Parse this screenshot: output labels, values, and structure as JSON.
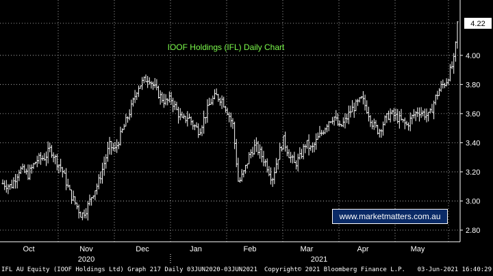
{
  "chart_data": {
    "type": "ohlc",
    "title": "IOOF Holdings (IFL) Daily Chart",
    "ylim": [
      2.72,
      4.38
    ],
    "y_ticks": [
      2.8,
      3.0,
      3.2,
      3.4,
      3.6,
      3.8,
      4.0,
      4.22
    ],
    "y_tick_labels": [
      "2.80",
      "3.00",
      "3.20",
      "3.40",
      "3.60",
      "3.80",
      "4.00"
    ],
    "last_value": 4.22,
    "last_value_label": "4.22",
    "x_months": [
      "Oct",
      "Nov",
      "Dec",
      "Jan",
      "Feb",
      "Mar",
      "Apr",
      "May"
    ],
    "x_years": [
      "2020",
      "2021"
    ],
    "grid": true,
    "price_path": [
      [
        0,
        3.12
      ],
      [
        3,
        3.1
      ],
      [
        6,
        3.22
      ],
      [
        9,
        3.18
      ],
      [
        12,
        3.28
      ],
      [
        15,
        3.3
      ],
      [
        17,
        3.36
      ],
      [
        19,
        3.28
      ],
      [
        21,
        3.22
      ],
      [
        24,
        3.05
      ],
      [
        26,
        2.98
      ],
      [
        28,
        2.9
      ],
      [
        30,
        2.95
      ],
      [
        32,
        3.05
      ],
      [
        34,
        3.12
      ],
      [
        36,
        3.25
      ],
      [
        38,
        3.38
      ],
      [
        40,
        3.35
      ],
      [
        42,
        3.45
      ],
      [
        44,
        3.55
      ],
      [
        46,
        3.65
      ],
      [
        48,
        3.78
      ],
      [
        50,
        3.82
      ],
      [
        52,
        3.85
      ],
      [
        54,
        3.78
      ],
      [
        56,
        3.72
      ],
      [
        58,
        3.68
      ],
      [
        60,
        3.7
      ],
      [
        62,
        3.62
      ],
      [
        64,
        3.55
      ],
      [
        66,
        3.58
      ],
      [
        68,
        3.52
      ],
      [
        70,
        3.48
      ],
      [
        72,
        3.58
      ],
      [
        74,
        3.68
      ],
      [
        76,
        3.72
      ],
      [
        78,
        3.7
      ],
      [
        80,
        3.62
      ],
      [
        82,
        3.52
      ],
      [
        84,
        3.12
      ],
      [
        86,
        3.2
      ],
      [
        88,
        3.32
      ],
      [
        90,
        3.38
      ],
      [
        92,
        3.32
      ],
      [
        94,
        3.25
      ],
      [
        96,
        3.15
      ],
      [
        98,
        3.3
      ],
      [
        100,
        3.42
      ],
      [
        102,
        3.32
      ],
      [
        104,
        3.25
      ],
      [
        106,
        3.3
      ],
      [
        108,
        3.4
      ],
      [
        110,
        3.35
      ],
      [
        112,
        3.42
      ],
      [
        114,
        3.48
      ],
      [
        116,
        3.55
      ],
      [
        118,
        3.58
      ],
      [
        120,
        3.5
      ],
      [
        122,
        3.55
      ],
      [
        124,
        3.62
      ],
      [
        126,
        3.66
      ],
      [
        128,
        3.7
      ],
      [
        130,
        3.62
      ],
      [
        132,
        3.52
      ],
      [
        134,
        3.48
      ],
      [
        136,
        3.55
      ],
      [
        138,
        3.6
      ],
      [
        140,
        3.58
      ],
      [
        142,
        3.55
      ],
      [
        144,
        3.52
      ],
      [
        146,
        3.58
      ],
      [
        148,
        3.62
      ],
      [
        150,
        3.6
      ],
      [
        152,
        3.58
      ],
      [
        154,
        3.7
      ],
      [
        156,
        3.78
      ],
      [
        158,
        3.82
      ],
      [
        160,
        3.92
      ],
      [
        161,
        3.98
      ],
      [
        162,
        4.22
      ]
    ]
  },
  "footer": {
    "left": "IFL AU Equity (IOOF Holdings Ltd) Graph 217  Daily 03JUN2020-03JUN2021",
    "center": "Copyright© 2021 Bloomberg Finance L.P.",
    "right": "03-Jun-2021 16:40:29"
  },
  "watermark": "www.marketmatters.com.au",
  "colors": {
    "background": "#000000",
    "bars": "#ffffff",
    "title": "#7CFC4C",
    "watermark_bg": "#0a2a66"
  }
}
